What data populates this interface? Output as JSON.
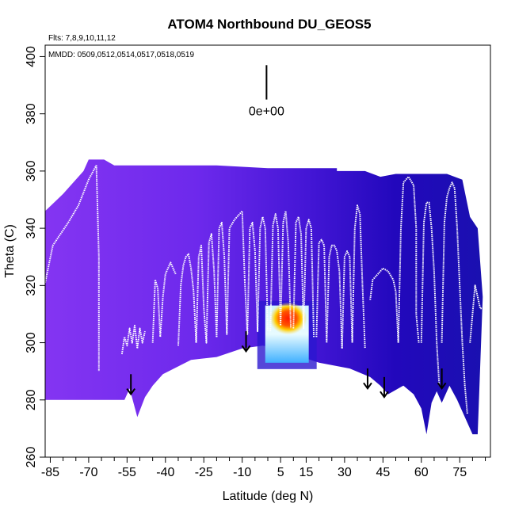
{
  "chart_data": {
    "type": "heatmap",
    "title": "ATOM4 Northbound DU_GEOS5",
    "subtitle_flights": "Flts: 7,8,9,10,11,12",
    "subtitle_dates": "MMDD: 0509,0512,0514,0517,0518,0519",
    "xlabel": "Latitude (deg N)",
    "ylabel": "Theta (C)",
    "xlim": [
      -87,
      87
    ],
    "ylim": [
      260,
      404
    ],
    "x_tick_labels": [
      "-85",
      "-70",
      "-55",
      "-40",
      "-25",
      "-10",
      "5",
      "15",
      "30",
      "45",
      "60",
      "75"
    ],
    "x_tick_values": [
      -85,
      -70,
      -55,
      -40,
      -25,
      -10,
      5,
      15,
      30,
      45,
      60,
      75
    ],
    "x_minor_ticks": [
      -80,
      -75,
      -65,
      -60,
      -50,
      -45,
      -35,
      -30,
      -20,
      -15,
      -5,
      0,
      10,
      20,
      25,
      35,
      40,
      50,
      55,
      65,
      70,
      80,
      85
    ],
    "y_tick_labels": [
      "260",
      "280",
      "300",
      "320",
      "340",
      "360",
      "380",
      "400"
    ],
    "y_tick_values": [
      260,
      280,
      300,
      320,
      340,
      360,
      380,
      400
    ],
    "colorbar_label": "0e+00",
    "colors": {
      "background_field": "#7a2ff0",
      "mid_field": "#4a1ad8",
      "deep_field": "#1e00b0",
      "high_value_core": "#ff2a00",
      "high_value_halo": "#ffd000",
      "light_value": "#bfefff",
      "cyan_value": "#30a8ff",
      "flight_track": "#ffffff",
      "arrows": "#000000"
    },
    "high_value_region": {
      "lat_range": [
        -1,
        16
      ],
      "theta_range": [
        293,
        313
      ],
      "core_lat": [
        5,
        11
      ],
      "core_theta": [
        305,
        312
      ]
    },
    "lower_boundary": [
      [
        -87,
        280
      ],
      [
        -56,
        280
      ],
      [
        -54,
        284
      ],
      [
        -51,
        274
      ],
      [
        -48,
        281
      ],
      [
        -45,
        285
      ],
      [
        -41,
        289
      ],
      [
        -30,
        294
      ],
      [
        -20,
        295
      ],
      [
        -10,
        298
      ],
      [
        -2,
        299
      ],
      [
        5,
        298
      ],
      [
        10,
        296
      ],
      [
        20,
        293
      ],
      [
        32,
        291
      ],
      [
        40,
        288
      ],
      [
        44,
        285
      ],
      [
        47,
        282
      ],
      [
        53,
        285
      ],
      [
        57,
        282
      ],
      [
        60,
        277
      ],
      [
        62,
        268
      ],
      [
        64,
        279
      ],
      [
        66,
        283
      ],
      [
        68,
        279
      ],
      [
        71,
        285
      ],
      [
        74,
        280
      ],
      [
        80,
        268
      ],
      [
        82,
        268
      ]
    ],
    "top_boundary": [
      [
        -87,
        346
      ],
      [
        -80,
        352
      ],
      [
        -72,
        360
      ],
      [
        -70,
        364
      ],
      [
        -64,
        364
      ],
      [
        -60,
        362
      ],
      [
        -42,
        362
      ],
      [
        -20,
        362
      ],
      [
        0,
        361
      ],
      [
        20,
        361
      ],
      [
        27,
        361
      ],
      [
        27,
        360
      ],
      [
        38,
        360
      ],
      [
        44,
        358
      ],
      [
        50,
        359
      ],
      [
        70,
        359
      ],
      [
        76,
        357
      ],
      [
        79,
        344
      ],
      [
        82,
        340
      ],
      [
        84,
        316
      ]
    ],
    "flight_tracks": [
      [
        [
          -87,
          321
        ],
        [
          -84,
          334
        ],
        [
          -81,
          338
        ],
        [
          -78,
          342
        ],
        [
          -74,
          348
        ],
        [
          -70,
          357
        ],
        [
          -67,
          362
        ]
      ],
      [
        [
          -67,
          362
        ],
        [
          -66,
          330
        ],
        [
          -66,
          310
        ],
        [
          -66,
          290
        ]
      ],
      [
        [
          -57,
          296
        ],
        [
          -56,
          302
        ],
        [
          -55,
          299
        ],
        [
          -54,
          305
        ],
        [
          -53,
          300
        ],
        [
          -52,
          306
        ],
        [
          -51,
          298
        ],
        [
          -50,
          305
        ],
        [
          -49,
          300
        ],
        [
          -48,
          304
        ]
      ],
      [
        [
          -45,
          300
        ],
        [
          -44,
          322
        ],
        [
          -43,
          319
        ],
        [
          -42,
          302
        ],
        [
          -41,
          316
        ],
        [
          -40,
          324
        ],
        [
          -38,
          328
        ],
        [
          -37,
          326
        ],
        [
          -36,
          324
        ]
      ],
      [
        [
          -35,
          299
        ],
        [
          -34,
          320
        ],
        [
          -33,
          327
        ],
        [
          -32,
          330
        ],
        [
          -31,
          331
        ],
        [
          -30,
          326
        ],
        [
          -29,
          318
        ],
        [
          -28,
          300
        ]
      ],
      [
        [
          -28,
          300
        ],
        [
          -27,
          330
        ],
        [
          -26,
          334
        ],
        [
          -25,
          312
        ],
        [
          -24,
          300
        ],
        [
          -23,
          335
        ],
        [
          -22,
          338
        ],
        [
          -21,
          325
        ],
        [
          -20,
          302
        ]
      ],
      [
        [
          -20,
          302
        ],
        [
          -19,
          340
        ],
        [
          -18,
          342
        ],
        [
          -17,
          330
        ],
        [
          -16,
          303
        ],
        [
          -15,
          340
        ],
        [
          -13,
          343
        ],
        [
          -11,
          345
        ],
        [
          -10,
          346
        ],
        [
          -9,
          322
        ]
      ],
      [
        [
          -9,
          322
        ],
        [
          -8,
          303
        ],
        [
          -7,
          340
        ],
        [
          -6,
          342
        ],
        [
          -5,
          332
        ],
        [
          -4,
          304
        ],
        [
          -3,
          340
        ],
        [
          -2,
          344
        ],
        [
          -1,
          340
        ],
        [
          0,
          304
        ]
      ],
      [
        [
          1,
          304
        ],
        [
          2,
          341
        ],
        [
          3,
          345
        ],
        [
          4,
          340
        ],
        [
          5,
          306
        ],
        [
          6,
          342
        ],
        [
          7,
          346
        ],
        [
          8,
          335
        ],
        [
          9,
          305
        ]
      ],
      [
        [
          10,
          305
        ],
        [
          11,
          342
        ],
        [
          12,
          344
        ],
        [
          13,
          338
        ],
        [
          14,
          305
        ],
        [
          15,
          340
        ],
        [
          16,
          343
        ],
        [
          17,
          340
        ],
        [
          18,
          302
        ]
      ],
      [
        [
          19,
          302
        ],
        [
          20,
          335
        ],
        [
          21,
          336
        ],
        [
          22,
          334
        ],
        [
          23,
          300
        ],
        [
          24,
          330
        ],
        [
          25,
          334
        ],
        [
          26,
          334
        ],
        [
          27,
          332
        ],
        [
          28,
          325
        ],
        [
          29,
          298
        ]
      ],
      [
        [
          29,
          298
        ],
        [
          30,
          330
        ],
        [
          31,
          332
        ],
        [
          32,
          330
        ],
        [
          33,
          300
        ],
        [
          34,
          340
        ],
        [
          35,
          348
        ],
        [
          36,
          345
        ],
        [
          37,
          320
        ],
        [
          38,
          298
        ]
      ],
      [
        [
          40,
          315
        ],
        [
          41,
          322
        ],
        [
          43,
          324
        ],
        [
          45,
          326
        ],
        [
          47,
          325
        ],
        [
          49,
          322
        ],
        [
          50,
          318
        ],
        [
          51,
          300
        ]
      ],
      [
        [
          51,
          300
        ],
        [
          52,
          340
        ],
        [
          53,
          356
        ],
        [
          55,
          358
        ],
        [
          57,
          355
        ],
        [
          58,
          340
        ],
        [
          58,
          310
        ],
        [
          59,
          300
        ]
      ],
      [
        [
          60,
          300
        ],
        [
          61,
          342
        ],
        [
          62,
          349
        ],
        [
          63,
          349
        ],
        [
          64,
          340
        ],
        [
          65,
          325
        ],
        [
          66,
          300
        ],
        [
          67,
          285
        ]
      ],
      [
        [
          68,
          300
        ],
        [
          69,
          342
        ],
        [
          70,
          351
        ],
        [
          71,
          354
        ],
        [
          72,
          356
        ],
        [
          73,
          354
        ],
        [
          74,
          340
        ],
        [
          75,
          320
        ],
        [
          76,
          300
        ],
        [
          77,
          285
        ],
        [
          78,
          275
        ]
      ],
      [
        [
          79,
          300
        ],
        [
          80,
          310
        ],
        [
          81,
          320
        ],
        [
          82,
          316
        ],
        [
          83,
          312
        ],
        [
          84,
          312
        ]
      ]
    ],
    "arrows": [
      {
        "lat": -53.5,
        "theta_from": 289,
        "theta_to": 282
      },
      {
        "lat": -8.5,
        "theta_from": 304,
        "theta_to": 297
      },
      {
        "lat": 39,
        "theta_from": 291,
        "theta_to": 284
      },
      {
        "lat": 45.5,
        "theta_from": 288,
        "theta_to": 281
      },
      {
        "lat": 68,
        "theta_from": 291,
        "theta_to": 284
      }
    ],
    "colorbar_marker": {
      "lat": -0.5,
      "theta_from": 397,
      "theta_to": 385
    }
  }
}
